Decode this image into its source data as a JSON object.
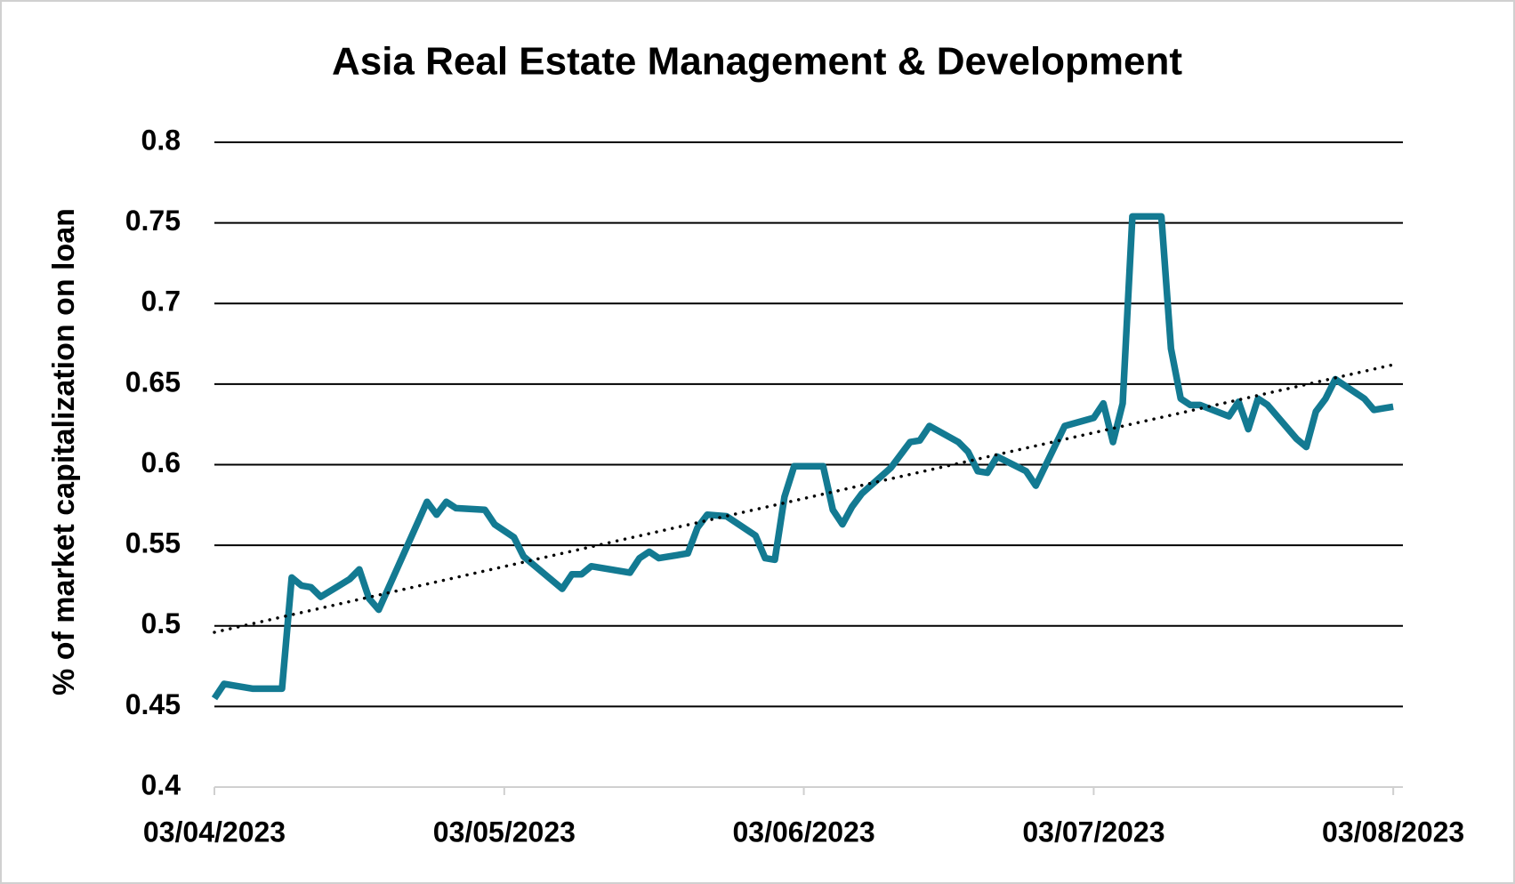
{
  "chart_data": {
    "type": "line",
    "title": "Asia Real Estate Management & Development",
    "y_label": "% of market capitalization on loan",
    "x": [
      "2023-04-03",
      "2023-04-04",
      "2023-04-05",
      "2023-04-07",
      "2023-04-10",
      "2023-04-11",
      "2023-04-12",
      "2023-04-13",
      "2023-04-14",
      "2023-04-17",
      "2023-04-18",
      "2023-04-19",
      "2023-04-20",
      "2023-04-25",
      "2023-04-26",
      "2023-04-27",
      "2023-04-28",
      "2023-05-01",
      "2023-05-02",
      "2023-05-04",
      "2023-05-05",
      "2023-05-09",
      "2023-05-10",
      "2023-05-11",
      "2023-05-12",
      "2023-05-16",
      "2023-05-17",
      "2023-05-18",
      "2023-05-19",
      "2023-05-22",
      "2023-05-23",
      "2023-05-24",
      "2023-05-26",
      "2023-05-29",
      "2023-05-30",
      "2023-05-31",
      "2023-06-01",
      "2023-06-02",
      "2023-06-05",
      "2023-06-06",
      "2023-06-07",
      "2023-06-08",
      "2023-06-09",
      "2023-06-12",
      "2023-06-14",
      "2023-06-15",
      "2023-06-16",
      "2023-06-19",
      "2023-06-20",
      "2023-06-21",
      "2023-06-22",
      "2023-06-23",
      "2023-06-26",
      "2023-06-27",
      "2023-06-30",
      "2023-07-03",
      "2023-07-04",
      "2023-07-05",
      "2023-07-06",
      "2023-07-07",
      "2023-07-10",
      "2023-07-11",
      "2023-07-12",
      "2023-07-13",
      "2023-07-14",
      "2023-07-17",
      "2023-07-18",
      "2023-07-19",
      "2023-07-20",
      "2023-07-21",
      "2023-07-24",
      "2023-07-25",
      "2023-07-26",
      "2023-07-27",
      "2023-07-28",
      "2023-07-31",
      "2023-08-01",
      "2023-08-02",
      "2023-08-03"
    ],
    "series": [
      {
        "color": "#137a92",
        "values": [
          0.455,
          0.464,
          0.463,
          0.461,
          0.461,
          0.53,
          0.525,
          0.524,
          0.518,
          0.529,
          0.535,
          0.517,
          0.51,
          0.577,
          0.569,
          0.577,
          0.573,
          0.572,
          0.563,
          0.555,
          0.543,
          0.523,
          0.532,
          0.532,
          0.537,
          0.533,
          0.542,
          0.546,
          0.542,
          0.545,
          0.561,
          0.569,
          0.568,
          0.556,
          0.542,
          0.541,
          0.58,
          0.599,
          0.599,
          0.572,
          0.563,
          0.574,
          0.582,
          0.598,
          0.614,
          0.615,
          0.624,
          0.614,
          0.608,
          0.596,
          0.595,
          0.605,
          0.596,
          0.587,
          0.624,
          0.629,
          0.638,
          0.614,
          0.638,
          0.754,
          0.754,
          0.672,
          0.641,
          0.637,
          0.637,
          0.63,
          0.639,
          0.622,
          0.641,
          0.637,
          0.616,
          0.611,
          0.633,
          0.641,
          0.653,
          0.641,
          0.634,
          0.635,
          0.636
        ]
      }
    ],
    "trendline": {
      "color": "#000000",
      "x": [
        "2023-04-03",
        "2023-08-03"
      ],
      "values": [
        0.496,
        0.662
      ]
    },
    "xlim": [
      "2023-04-03",
      "2023-08-04"
    ],
    "xticks": [
      {
        "value": "2023-04-03",
        "label": "03/04/2023"
      },
      {
        "value": "2023-05-03",
        "label": "03/05/2023"
      },
      {
        "value": "2023-06-03",
        "label": "03/06/2023"
      },
      {
        "value": "2023-07-03",
        "label": "03/07/2023"
      },
      {
        "value": "2023-08-03",
        "label": "03/08/2023"
      }
    ],
    "ylim": [
      0.4,
      0.8
    ],
    "yticks": [
      0.4,
      0.45,
      0.5,
      0.55,
      0.6,
      0.65,
      0.7,
      0.75,
      0.8
    ],
    "grid": true
  }
}
